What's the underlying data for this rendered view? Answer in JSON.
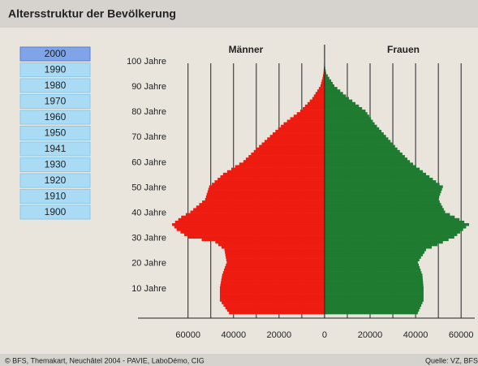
{
  "header": {
    "title": "Altersstruktur der Bevölkerung"
  },
  "years": {
    "items": [
      "2000",
      "1990",
      "1980",
      "1970",
      "1960",
      "1950",
      "1941",
      "1930",
      "1920",
      "1910",
      "1900"
    ],
    "selected": "2000"
  },
  "footer": {
    "credit": "© BFS, Themakart, Neuchâtel 2004 - PAVIE, LaboDémo, CIG",
    "source": "Quelle: VZ, BFS"
  },
  "chart_data": {
    "type": "pyramid",
    "ages": [
      0,
      1,
      2,
      3,
      4,
      5,
      6,
      7,
      8,
      9,
      10,
      11,
      12,
      13,
      14,
      15,
      16,
      17,
      18,
      19,
      20,
      21,
      22,
      23,
      24,
      25,
      26,
      27,
      28,
      29,
      30,
      31,
      32,
      33,
      34,
      35,
      36,
      37,
      38,
      39,
      40,
      41,
      42,
      43,
      44,
      45,
      46,
      47,
      48,
      49,
      50,
      51,
      52,
      53,
      54,
      55,
      56,
      57,
      58,
      59,
      60,
      61,
      62,
      63,
      64,
      65,
      66,
      67,
      68,
      69,
      70,
      71,
      72,
      73,
      74,
      75,
      76,
      77,
      78,
      79,
      80,
      81,
      82,
      83,
      84,
      85,
      86,
      87,
      88,
      89,
      90,
      91,
      92,
      93,
      94,
      95,
      96,
      97,
      98,
      99
    ],
    "series": [
      {
        "name": "Männer",
        "color": "#ee1c10",
        "side": "left",
        "values": [
          42000,
          42800,
          43600,
          44400,
          45200,
          46000,
          46000,
          46000,
          46000,
          46000,
          46000,
          45800,
          45600,
          45400,
          45200,
          45000,
          44600,
          44200,
          43800,
          43400,
          43000,
          43200,
          43400,
          43600,
          43800,
          44000,
          45300,
          46700,
          48000,
          54000,
          60000,
          61700,
          63300,
          65000,
          66000,
          67000,
          65700,
          64300,
          63000,
          61000,
          59000,
          57700,
          56400,
          55100,
          53800,
          52500,
          52100,
          51800,
          51400,
          51100,
          50700,
          49500,
          48300,
          47000,
          45800,
          44600,
          42800,
          41000,
          39300,
          37500,
          35700,
          34600,
          33400,
          32300,
          31100,
          30000,
          28800,
          27600,
          26400,
          25200,
          24000,
          22800,
          21600,
          20400,
          19200,
          18000,
          16500,
          15100,
          13600,
          12200,
          10700,
          9600,
          8600,
          7500,
          6500,
          5400,
          4700,
          4000,
          3200,
          2500,
          1800,
          1500,
          1200,
          900,
          700,
          500,
          400,
          300,
          200,
          100
        ]
      },
      {
        "name": "Frauen",
        "color": "#1e7b30",
        "side": "right",
        "values": [
          41000,
          41500,
          42000,
          42500,
          43000,
          43500,
          43500,
          43500,
          43500,
          43500,
          43500,
          43400,
          43300,
          43200,
          43100,
          43000,
          42600,
          42200,
          41800,
          41400,
          41000,
          41700,
          42400,
          43200,
          43900,
          44600,
          47100,
          49600,
          52000,
          54500,
          57000,
          58300,
          59600,
          60900,
          62200,
          63500,
          61400,
          59300,
          57200,
          55100,
          53000,
          52400,
          51800,
          51200,
          50600,
          50000,
          50400,
          50800,
          51200,
          51600,
          52000,
          50500,
          49000,
          47600,
          46100,
          44600,
          43200,
          41800,
          40300,
          38900,
          37500,
          36400,
          35300,
          34200,
          33100,
          32000,
          31000,
          30000,
          29000,
          28000,
          27000,
          26000,
          25000,
          24000,
          23000,
          22000,
          21200,
          20400,
          19600,
          18800,
          18000,
          16500,
          15100,
          13600,
          12200,
          10700,
          9400,
          8100,
          6900,
          5600,
          4300,
          3600,
          2900,
          2100,
          1400,
          700,
          500,
          300,
          200,
          100
        ]
      }
    ],
    "xlim": [
      -82000,
      66000
    ],
    "xticks": [
      {
        "value": -60000,
        "label": "60000"
      },
      {
        "value": -40000,
        "label": "40000"
      },
      {
        "value": -20000,
        "label": "20000"
      },
      0,
      20000,
      40000,
      60000
    ],
    "xgrid": [
      -60000,
      -50000,
      -40000,
      -30000,
      -20000,
      -10000,
      0,
      10000,
      20000,
      30000,
      40000,
      50000,
      60000
    ],
    "ylim": [
      0,
      100
    ],
    "yticks": [
      {
        "value": 10,
        "label": "10 Jahre"
      },
      {
        "value": 20,
        "label": "20 Jahre"
      },
      {
        "value": 30,
        "label": "30 Jahre"
      },
      {
        "value": 40,
        "label": "40 Jahre"
      },
      {
        "value": 50,
        "label": "50 Jahre"
      },
      {
        "value": 60,
        "label": "60 Jahre"
      },
      {
        "value": 70,
        "label": "70 Jahre"
      },
      {
        "value": 80,
        "label": "80 Jahre"
      },
      {
        "value": 90,
        "label": "90 Jahre"
      },
      {
        "value": 100,
        "label": "100 Jahre"
      }
    ]
  }
}
